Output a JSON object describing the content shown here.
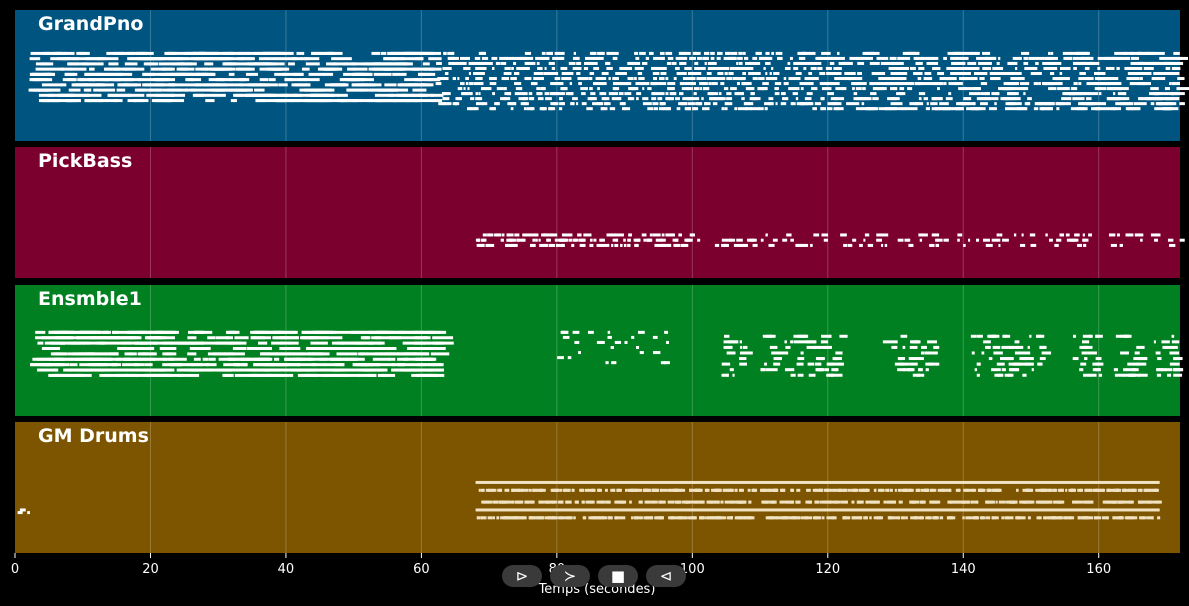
{
  "chart_data": {
    "type": "piano-roll",
    "xlabel": "Temps (secondes)",
    "xlim": [
      0,
      172
    ],
    "xticks": [
      0,
      20,
      40,
      60,
      80,
      100,
      120,
      140,
      160
    ],
    "grid": true,
    "tracks": [
      {
        "name": "GrandPno",
        "color": "#005580",
        "segments": [
          {
            "start": 2,
            "end": 62,
            "style": "long",
            "pitch_range": [
              0.32,
              0.72
            ]
          },
          {
            "start": 62,
            "end": 120,
            "style": "dense",
            "pitch_range": [
              0.32,
              0.78
            ]
          },
          {
            "start": 120,
            "end": 172,
            "style": "mixed",
            "pitch_range": [
              0.32,
              0.78
            ]
          }
        ]
      },
      {
        "name": "PickBass",
        "color": "#7b002e",
        "segments": [
          {
            "start": 68,
            "end": 100,
            "style": "short",
            "pitch_range": [
              0.66,
              0.78
            ]
          },
          {
            "start": 100,
            "end": 172,
            "style": "sparse",
            "pitch_range": [
              0.66,
              0.78
            ]
          }
        ]
      },
      {
        "name": "Ensmble1",
        "color": "#008020",
        "segments": [
          {
            "start": 2,
            "end": 62,
            "style": "long",
            "pitch_range": [
              0.35,
              0.72
            ]
          },
          {
            "start": 80,
            "end": 100,
            "style": "sparse",
            "pitch_range": [
              0.35,
              0.62
            ]
          },
          {
            "start": 104,
            "end": 172,
            "style": "clusters",
            "pitch_range": [
              0.38,
              0.72
            ]
          }
        ]
      },
      {
        "name": "GM Drums",
        "color": "#7d5500",
        "segments": [
          {
            "start": 0,
            "end": 2,
            "style": "sparse",
            "pitch_range": [
              0.66,
              0.7
            ]
          },
          {
            "start": 68,
            "end": 169,
            "style": "drums",
            "pitch_range": [
              0.45,
              0.75
            ]
          }
        ]
      }
    ]
  },
  "controls": {
    "play_icon": "⊳",
    "forward_icon": "≻",
    "stop_icon": "■",
    "rewind_icon": "⊲"
  }
}
